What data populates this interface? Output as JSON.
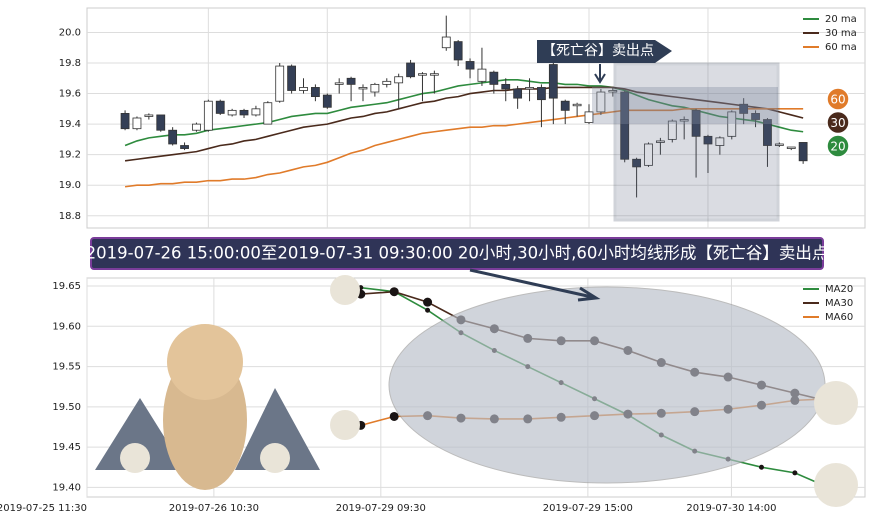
{
  "chart_data": [
    {
      "type": "candlestick",
      "x": [
        0,
        1,
        2,
        3,
        4,
        5,
        6,
        7,
        8,
        9,
        10,
        11,
        12,
        13,
        14,
        15,
        16,
        17,
        18,
        19,
        20,
        21,
        22,
        23,
        24,
        25,
        26,
        27,
        28,
        29,
        30,
        31,
        32,
        33,
        34,
        35,
        36,
        37,
        38,
        39,
        40,
        41,
        42,
        43,
        44,
        45,
        46,
        47,
        48,
        49,
        50,
        51,
        52,
        53,
        54,
        55,
        56,
        57
      ],
      "open": [
        19.47,
        19.37,
        19.45,
        19.46,
        19.36,
        19.26,
        19.36,
        19.36,
        19.55,
        19.46,
        19.49,
        19.46,
        19.4,
        19.55,
        19.78,
        19.62,
        19.64,
        19.59,
        19.66,
        19.7,
        19.63,
        19.61,
        19.66,
        19.67,
        19.8,
        19.72,
        19.72,
        19.9,
        19.94,
        19.81,
        19.68,
        19.74,
        19.66,
        19.63,
        19.63,
        19.64,
        19.79,
        19.55,
        19.52,
        19.41,
        19.48,
        19.61,
        19.61,
        19.17,
        19.13,
        19.28,
        19.3,
        19.42,
        19.49,
        19.32,
        19.26,
        19.32,
        19.53,
        19.47,
        19.43,
        19.26,
        19.24,
        19.28
      ],
      "close": [
        19.37,
        19.44,
        19.46,
        19.36,
        19.27,
        19.24,
        19.4,
        19.55,
        19.47,
        19.49,
        19.46,
        19.5,
        19.54,
        19.78,
        19.62,
        19.64,
        19.58,
        19.51,
        19.67,
        19.66,
        19.64,
        19.66,
        19.68,
        19.71,
        19.71,
        19.73,
        19.73,
        19.97,
        19.82,
        19.76,
        19.76,
        19.66,
        19.63,
        19.57,
        19.64,
        19.56,
        19.57,
        19.49,
        19.53,
        19.48,
        19.61,
        19.62,
        19.17,
        19.12,
        19.27,
        19.29,
        19.42,
        19.43,
        19.32,
        19.27,
        19.31,
        19.48,
        19.47,
        19.43,
        19.26,
        19.27,
        19.25,
        19.16
      ],
      "high": [
        19.49,
        19.45,
        19.47,
        19.46,
        19.38,
        19.28,
        19.41,
        19.56,
        19.56,
        19.5,
        19.5,
        19.52,
        19.55,
        19.8,
        19.79,
        19.7,
        19.66,
        19.6,
        19.7,
        19.71,
        19.66,
        19.67,
        19.7,
        19.73,
        19.82,
        19.74,
        19.75,
        20.11,
        19.95,
        19.83,
        19.9,
        19.75,
        19.7,
        19.65,
        19.7,
        19.66,
        19.8,
        19.56,
        19.54,
        19.53,
        19.63,
        19.64,
        19.62,
        19.18,
        19.28,
        19.31,
        19.43,
        19.45,
        19.5,
        19.33,
        19.32,
        19.49,
        19.57,
        19.49,
        19.44,
        19.28,
        19.25,
        19.28
      ],
      "low": [
        19.36,
        19.36,
        19.43,
        19.35,
        19.26,
        19.23,
        19.35,
        19.35,
        19.46,
        19.45,
        19.44,
        19.45,
        19.4,
        19.54,
        19.6,
        19.6,
        19.55,
        19.5,
        19.6,
        19.55,
        19.55,
        19.58,
        19.64,
        19.5,
        19.7,
        19.55,
        19.6,
        19.88,
        19.78,
        19.7,
        19.65,
        19.6,
        19.55,
        19.5,
        19.55,
        19.38,
        19.4,
        19.4,
        19.45,
        19.4,
        19.46,
        19.58,
        19.15,
        18.92,
        19.12,
        19.2,
        19.28,
        19.3,
        19.05,
        19.08,
        19.2,
        19.3,
        19.4,
        19.38,
        19.12,
        19.25,
        19.23,
        19.14
      ],
      "up_color": "#ffffff",
      "down_color": "#343f56",
      "lines": [
        {
          "name": "20 ma",
          "color": "#2e8b3e",
          "values": [
            19.26,
            19.29,
            19.31,
            19.32,
            19.33,
            19.33,
            19.34,
            19.36,
            19.37,
            19.38,
            19.39,
            19.4,
            19.41,
            19.43,
            19.45,
            19.46,
            19.47,
            19.47,
            19.49,
            19.51,
            19.52,
            19.53,
            19.54,
            19.56,
            19.58,
            19.6,
            19.61,
            19.63,
            19.65,
            19.66,
            19.67,
            19.68,
            19.69,
            19.69,
            19.68,
            19.67,
            19.67,
            19.66,
            19.66,
            19.65,
            19.65,
            19.64,
            19.62,
            19.59,
            19.56,
            19.54,
            19.52,
            19.51,
            19.49,
            19.47,
            19.45,
            19.44,
            19.43,
            19.42,
            19.4,
            19.38,
            19.36,
            19.35
          ]
        },
        {
          "name": "30 ma",
          "color": "#4a2a1c",
          "values": [
            19.16,
            19.17,
            19.18,
            19.19,
            19.2,
            19.21,
            19.22,
            19.24,
            19.26,
            19.27,
            19.29,
            19.3,
            19.32,
            19.34,
            19.36,
            19.38,
            19.39,
            19.4,
            19.42,
            19.44,
            19.45,
            19.47,
            19.48,
            19.5,
            19.52,
            19.54,
            19.55,
            19.57,
            19.58,
            19.6,
            19.61,
            19.62,
            19.62,
            19.63,
            19.63,
            19.63,
            19.64,
            19.64,
            19.64,
            19.64,
            19.64,
            19.64,
            19.63,
            19.61,
            19.6,
            19.59,
            19.58,
            19.57,
            19.56,
            19.55,
            19.54,
            19.53,
            19.52,
            19.51,
            19.5,
            19.48,
            19.46,
            19.44
          ]
        },
        {
          "name": "60 ma",
          "color": "#e07b2a",
          "values": [
            18.99,
            19.0,
            19.0,
            19.01,
            19.01,
            19.02,
            19.02,
            19.03,
            19.03,
            19.04,
            19.04,
            19.05,
            19.07,
            19.08,
            19.1,
            19.12,
            19.13,
            19.15,
            19.18,
            19.21,
            19.23,
            19.26,
            19.28,
            19.3,
            19.32,
            19.34,
            19.35,
            19.36,
            19.37,
            19.38,
            19.38,
            19.39,
            19.39,
            19.4,
            19.41,
            19.42,
            19.43,
            19.44,
            19.45,
            19.46,
            19.47,
            19.48,
            19.49,
            19.49,
            19.49,
            19.49,
            19.49,
            19.5,
            19.5,
            19.5,
            19.5,
            19.5,
            19.5,
            19.5,
            19.5,
            19.5,
            19.5,
            19.5
          ]
        }
      ],
      "xlim": [
        -3.2,
        62.2
      ],
      "ylim": [
        18.72,
        20.16
      ],
      "xticks": [
        7,
        17,
        29,
        39,
        49
      ],
      "yticks": [
        18.8,
        {
          "value": 19,
          "label": "19.0"
        },
        19.2,
        19.4,
        19.6,
        19.8,
        {
          "value": 20,
          "label": "20.0"
        }
      ],
      "grid": true,
      "legend": "upper right",
      "annotation": "【死亡谷】卖出点",
      "end_labels": [
        "60",
        "30",
        "20"
      ]
    },
    {
      "type": "line",
      "x": [
        0,
        1,
        2,
        3,
        4,
        5,
        6,
        7,
        8,
        9,
        10,
        11,
        12,
        13,
        14
      ],
      "series": [
        {
          "name": "MA20",
          "color": "#2e8b3e",
          "values": [
            19.648,
            19.643,
            19.62,
            19.592,
            19.57,
            19.55,
            19.53,
            19.51,
            19.49,
            19.465,
            19.445,
            19.435,
            19.425,
            19.418,
            19.4
          ]
        },
        {
          "name": "MA30",
          "color": "#4a2a1c",
          "values": [
            19.64,
            19.643,
            19.63,
            19.608,
            19.597,
            19.585,
            19.582,
            19.582,
            19.57,
            19.555,
            19.543,
            19.537,
            19.527,
            19.517,
            19.507
          ]
        },
        {
          "name": "MA60",
          "color": "#e07b2a",
          "values": [
            19.477,
            19.488,
            19.489,
            19.486,
            19.485,
            19.485,
            19.487,
            19.489,
            19.491,
            19.492,
            19.494,
            19.497,
            19.502,
            19.508,
            19.51
          ]
        }
      ],
      "xlim": [
        -8.2,
        15.1
      ],
      "ylim": [
        19.388,
        19.66
      ],
      "xticks": [
        {
          "value": -8.2,
          "label": "2019-07-25 11:30"
        },
        {
          "value": -4.4,
          "label": "2019-07-26 10:30"
        },
        {
          "value": 0.6,
          "label": "2019-07-29 09:30"
        },
        {
          "value": 6.8,
          "label": "2019-07-29 15:00"
        },
        {
          "value": 11.1,
          "label": "2019-07-30 14:00"
        }
      ],
      "yticks": [
        {
          "value": 19.4,
          "label": "19.40"
        },
        19.45,
        {
          "value": 19.5,
          "label": "19.50"
        },
        19.55,
        {
          "value": 19.6,
          "label": "19.60"
        },
        19.65
      ],
      "grid": true,
      "legend": "upper right"
    }
  ],
  "banner": "2019-07-26 15:00:00至2019-07-31 09:30:00 20小时,30小时,60小时均线形成【死亡谷】卖出点"
}
